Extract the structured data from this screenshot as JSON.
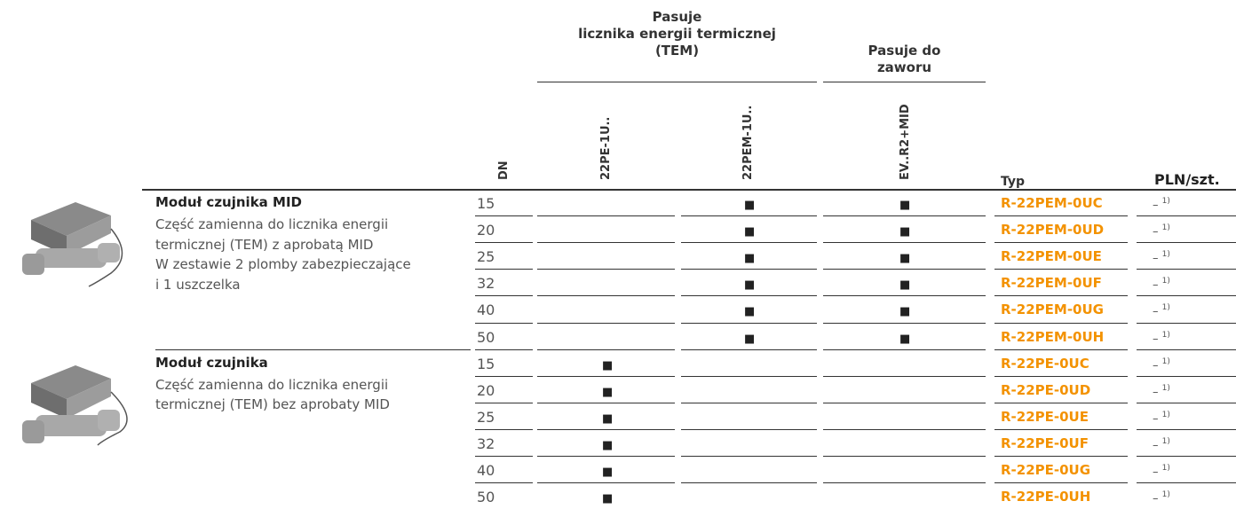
{
  "header": {
    "group_fits_meter": [
      "Pasuje",
      "licznika energii termicznej",
      "(TEM)"
    ],
    "group_fits_valve": [
      "Pasuje do",
      "zaworu"
    ],
    "columns": {
      "dn": "DN",
      "c1": "22PE-1U..",
      "c2": "22PEM-1U..",
      "c3": "EV..R2+MID",
      "type": "Typ",
      "price": "PLN/szt."
    }
  },
  "groups": [
    {
      "title": "Moduł czujnika MID",
      "description": [
        "Część zamienna do licznika energii",
        "termicznej (TEM) z aprobatą MID",
        "W zestawie 2 plomby zabezpieczające",
        "i 1 uszczelka"
      ],
      "rows": [
        {
          "dn": "15",
          "cells": [
            null,
            "■",
            "■"
          ],
          "type": "R-22PEM-0UC",
          "price": "–",
          "note": "1)"
        },
        {
          "dn": "20",
          "cells": [
            null,
            "■",
            "■"
          ],
          "type": "R-22PEM-0UD",
          "price": "–",
          "note": "1)"
        },
        {
          "dn": "25",
          "cells": [
            null,
            "■",
            "■"
          ],
          "type": "R-22PEM-0UE",
          "price": "–",
          "note": "1)"
        },
        {
          "dn": "32",
          "cells": [
            null,
            "■",
            "■"
          ],
          "type": "R-22PEM-0UF",
          "price": "–",
          "note": "1)"
        },
        {
          "dn": "40",
          "cells": [
            null,
            "■",
            "■"
          ],
          "type": "R-22PEM-0UG",
          "price": "–",
          "note": "1)"
        },
        {
          "dn": "50",
          "cells": [
            null,
            "■",
            "■"
          ],
          "type": "R-22PEM-0UH",
          "price": "–",
          "note": "1)"
        }
      ]
    },
    {
      "title": "Moduł czujnika",
      "description": [
        "Część zamienna do licznika energii",
        "termicznej (TEM) bez aprobaty MID"
      ],
      "rows": [
        {
          "dn": "15",
          "cells": [
            "■",
            null,
            null
          ],
          "type": "R-22PE-0UC",
          "price": "–",
          "note": "1)"
        },
        {
          "dn": "20",
          "cells": [
            "■",
            null,
            null
          ],
          "type": "R-22PE-0UD",
          "price": "–",
          "note": "1)"
        },
        {
          "dn": "25",
          "cells": [
            "■",
            null,
            null
          ],
          "type": "R-22PE-0UE",
          "price": "–",
          "note": "1)"
        },
        {
          "dn": "32",
          "cells": [
            "■",
            null,
            null
          ],
          "type": "R-22PE-0UF",
          "price": "–",
          "note": "1)"
        },
        {
          "dn": "40",
          "cells": [
            "■",
            null,
            null
          ],
          "type": "R-22PE-0UG",
          "price": "–",
          "note": "1)"
        },
        {
          "dn": "50",
          "cells": [
            "■",
            null,
            null
          ],
          "type": "R-22PE-0UH",
          "price": "–",
          "note": "1)"
        }
      ]
    }
  ]
}
